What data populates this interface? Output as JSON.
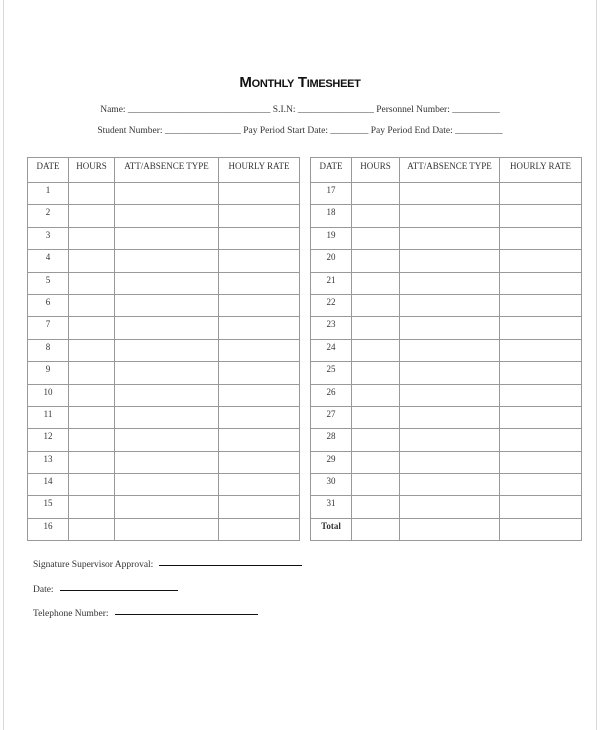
{
  "title": "Monthly Timesheet",
  "fields_line1": "Name: ______________________________ S.I.N: ________________ Personnel Number: __________",
  "fields_line2": "Student Number: ________________ Pay Period Start Date: ________ Pay Period End Date: __________",
  "columns": [
    "DATE",
    "HOURS",
    "ATT/ABSENCE TYPE",
    "HOURLY RATE"
  ],
  "left_dates": [
    "1",
    "2",
    "3",
    "4",
    "5",
    "6",
    "7",
    "8",
    "9",
    "10",
    "11",
    "12",
    "13",
    "14",
    "15",
    "16"
  ],
  "right_dates": [
    "17",
    "18",
    "19",
    "20",
    "21",
    "22",
    "23",
    "24",
    "25",
    "26",
    "27",
    "28",
    "29",
    "30",
    "31",
    "Total"
  ],
  "signature": {
    "supervisor_label": "Signature Supervisor Approval:",
    "date_label": "Date:",
    "telephone_label": "Telephone Number:"
  }
}
